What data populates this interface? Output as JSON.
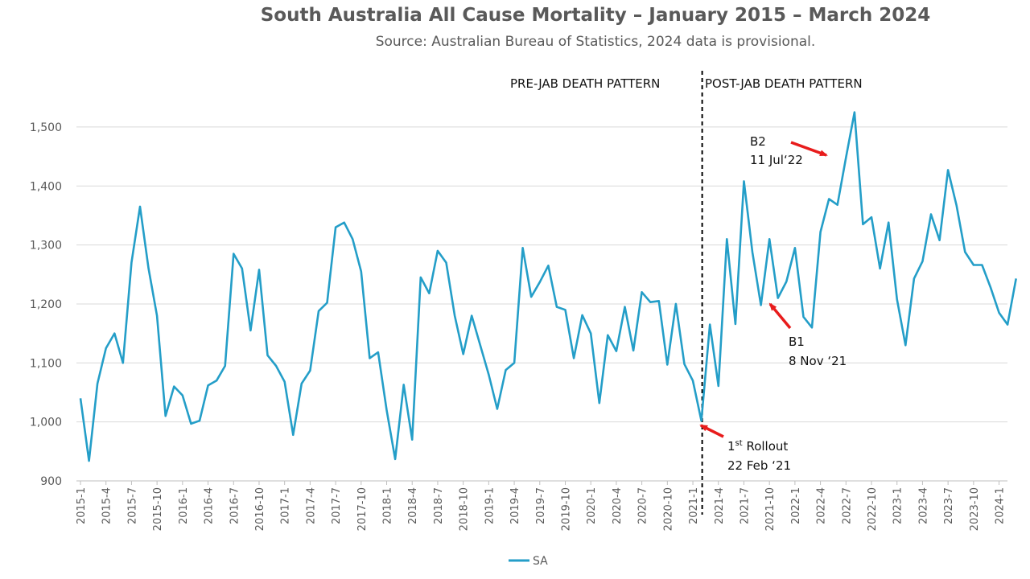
{
  "chart_data": {
    "type": "line",
    "title": "South Australia All Cause Mortality – January 2015 – March 2024",
    "subtitle": "Source: Australian Bureau of Statistics, 2024 data is provisional.",
    "xlabel": "",
    "ylabel": "",
    "ylim": [
      900,
      1550
    ],
    "yticks": [
      900,
      1000,
      1100,
      1200,
      1300,
      1400,
      1500
    ],
    "ytick_labels": [
      "900",
      "1,000",
      "1,100",
      "1,200",
      "1,300",
      "1,400",
      "1,500"
    ],
    "grid": true,
    "legend_position": "bottom",
    "line_color": "#249ec8",
    "arrow_color": "#e81c1c",
    "x": [
      "2015-1",
      "2015-2",
      "2015-3",
      "2015-4",
      "2015-5",
      "2015-6",
      "2015-7",
      "2015-8",
      "2015-9",
      "2015-10",
      "2015-11",
      "2015-12",
      "2016-1",
      "2016-2",
      "2016-3",
      "2016-4",
      "2016-5",
      "2016-6",
      "2016-7",
      "2016-8",
      "2016-9",
      "2016-10",
      "2016-11",
      "2016-12",
      "2017-1",
      "2017-2",
      "2017-3",
      "2017-4",
      "2017-5",
      "2017-6",
      "2017-7",
      "2017-8",
      "2017-9",
      "2017-10",
      "2017-11",
      "2017-12",
      "2018-1",
      "2018-2",
      "2018-3",
      "2018-4",
      "2018-5",
      "2018-6",
      "2018-7",
      "2018-8",
      "2018-9",
      "2018-10",
      "2018-11",
      "2018-12",
      "2019-1",
      "2019-2",
      "2019-3",
      "2019-4",
      "2019-5",
      "2019-6",
      "2019-7",
      "2019-8",
      "2019-9",
      "2019-10",
      "2019-11",
      "2019-12",
      "2020-1",
      "2020-2",
      "2020-3",
      "2020-4",
      "2020-5",
      "2020-6",
      "2020-7",
      "2020-8",
      "2020-9",
      "2020-10",
      "2020-11",
      "2020-12",
      "2021-1",
      "2021-2",
      "2021-3",
      "2021-4",
      "2021-5",
      "2021-6",
      "2021-7",
      "2021-8",
      "2021-9",
      "2021-10",
      "2021-11",
      "2021-12",
      "2022-1",
      "2022-2",
      "2022-3",
      "2022-4",
      "2022-5",
      "2022-6",
      "2022-7",
      "2022-8",
      "2022-9",
      "2022-10",
      "2022-11",
      "2022-12",
      "2023-1",
      "2023-2",
      "2023-3",
      "2023-4",
      "2023-5",
      "2023-6",
      "2023-7",
      "2023-8",
      "2023-9",
      "2023-10",
      "2023-11",
      "2023-12",
      "2024-1",
      "2024-2",
      "2024-3"
    ],
    "xtick_labels": [
      "2015-1",
      "2015-4",
      "2015-7",
      "2015-10",
      "2016-1",
      "2016-4",
      "2016-7",
      "2016-10",
      "2017-1",
      "2017-4",
      "2017-7",
      "2017-10",
      "2018-1",
      "2018-4",
      "2018-7",
      "2018-10",
      "2019-1",
      "2019-4",
      "2019-7",
      "2019-10",
      "2020-1",
      "2020-4",
      "2020-7",
      "2020-10",
      "2021-1",
      "2021-4",
      "2021-7",
      "2021-10",
      "2022-1",
      "2022-4",
      "2022-7",
      "2022-10",
      "2023-1",
      "2023-4",
      "2023-7",
      "2023-10",
      "2024-1"
    ],
    "series": [
      {
        "name": "SA",
        "values": [
          1040,
          934,
          1065,
          1125,
          1150,
          1100,
          1270,
          1365,
          1260,
          1180,
          1010,
          1060,
          1045,
          997,
          1002,
          1062,
          1070,
          1095,
          1285,
          1260,
          1155,
          1258,
          1113,
          1095,
          1068,
          978,
          1065,
          1087,
          1188,
          1202,
          1330,
          1338,
          1310,
          1255,
          1108,
          1118,
          1020,
          937,
          1063,
          970,
          1245,
          1218,
          1290,
          1270,
          1180,
          1115,
          1180,
          1130,
          1080,
          1022,
          1088,
          1100,
          1295,
          1212,
          1237,
          1265,
          1195,
          1190,
          1108,
          1181,
          1150,
          1032,
          1147,
          1120,
          1195,
          1121,
          1220,
          1203,
          1205,
          1097,
          1200,
          1098,
          1070,
          1002,
          1165,
          1061,
          1310,
          1166,
          1408,
          1288,
          1198,
          1310,
          1210,
          1238,
          1295,
          1178,
          1160,
          1322,
          1378,
          1368,
          1448,
          1525,
          1335,
          1347,
          1260,
          1338,
          1208,
          1130,
          1243,
          1272,
          1352,
          1308,
          1427,
          1367,
          1288,
          1266,
          1266,
          1228,
          1185,
          1165,
          1243
        ]
      }
    ],
    "divider_at": "2021-2",
    "annotations": {
      "pre_label": "PRE-JAB DEATH PATTERN",
      "post_label": "POST-JAB DEATH PATTERN",
      "b2_name": "B2",
      "b2_date": "11 Jul‘22",
      "b1_name": "B1",
      "b1_date": "8 Nov ‘21",
      "rollout_num": "1",
      "rollout_sup": "st",
      "rollout_word": " Rollout",
      "rollout_date": "22 Feb ‘21"
    }
  }
}
